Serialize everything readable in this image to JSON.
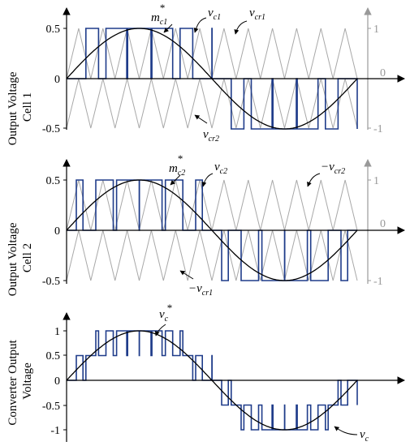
{
  "colors": {
    "carrier": "#a8a8a8",
    "pwm": "#1f3c8a",
    "reference": "#000000",
    "axis": "#000000",
    "right_axis": "#999999"
  },
  "chart_data": [
    {
      "type": "line",
      "ylabel_line1": "Output Voltage",
      "ylabel_line2": "Cell 1",
      "ylim": [
        -0.5,
        0.5
      ],
      "left_ticks": [
        "0.5",
        "0",
        "-0.5"
      ],
      "right_ticks": [
        "1",
        "0",
        "-1"
      ],
      "reference": {
        "name": "m",
        "sub": "c1",
        "sup": "*",
        "amplitude": 0.5,
        "cycles": 1
      },
      "pwm": {
        "name": "v",
        "sub": "c1",
        "levels": [
          0,
          0.5,
          -0.5
        ]
      },
      "carriers": [
        {
          "name": "v",
          "sub": "cr1",
          "range": [
            0,
            1
          ],
          "periods": 12
        },
        {
          "name": "v",
          "sub": "cr2",
          "range": [
            -1,
            0
          ],
          "periods": 12
        }
      ],
      "annotations": [
        {
          "label": "m",
          "sub": "c1",
          "sup": "*"
        },
        {
          "label": "v",
          "sub": "c1"
        },
        {
          "label": "v",
          "sub": "cr1"
        },
        {
          "label": "v",
          "sub": "cr2"
        }
      ]
    },
    {
      "type": "line",
      "ylabel_line1": "Output Voltage",
      "ylabel_line2": "Cell 2",
      "ylim": [
        -0.5,
        0.5
      ],
      "left_ticks": [
        "0.5",
        "0",
        "-0.5"
      ],
      "right_ticks": [
        "1",
        "0",
        "-1"
      ],
      "reference": {
        "name": "m",
        "sub": "c2",
        "sup": "*",
        "amplitude": 0.5,
        "cycles": 1
      },
      "pwm": {
        "name": "v",
        "sub": "c2",
        "levels": [
          0,
          0.5,
          -0.5
        ]
      },
      "carriers": [
        {
          "name": "−v",
          "sub": "cr2",
          "range": [
            0,
            1
          ],
          "periods": 12
        },
        {
          "name": "−v",
          "sub": "cr1",
          "range": [
            -1,
            0
          ],
          "periods": 12
        }
      ],
      "annotations": [
        {
          "label": "m",
          "sub": "c2",
          "sup": "*"
        },
        {
          "label": "v",
          "sub": "c2"
        },
        {
          "label": "−v",
          "sub": "cr2"
        },
        {
          "label": "−v",
          "sub": "cr1"
        }
      ]
    },
    {
      "type": "line",
      "ylabel_line1": "Converter Output",
      "ylabel_line2": "Voltage",
      "ylim": [
        -1,
        1
      ],
      "left_ticks": [
        "1",
        "0.5",
        "0",
        "-0.5",
        "-1"
      ],
      "reference": {
        "name": "v",
        "sub": "c",
        "sup": "*",
        "amplitude": 1,
        "cycles": 1
      },
      "pwm": {
        "name": "v",
        "sub": "c",
        "levels": [
          -1,
          -0.5,
          0,
          0.5,
          1
        ]
      },
      "annotations": [
        {
          "label": "v",
          "sub": "c",
          "sup": "*"
        },
        {
          "label": "v",
          "sub": "c"
        }
      ]
    }
  ]
}
